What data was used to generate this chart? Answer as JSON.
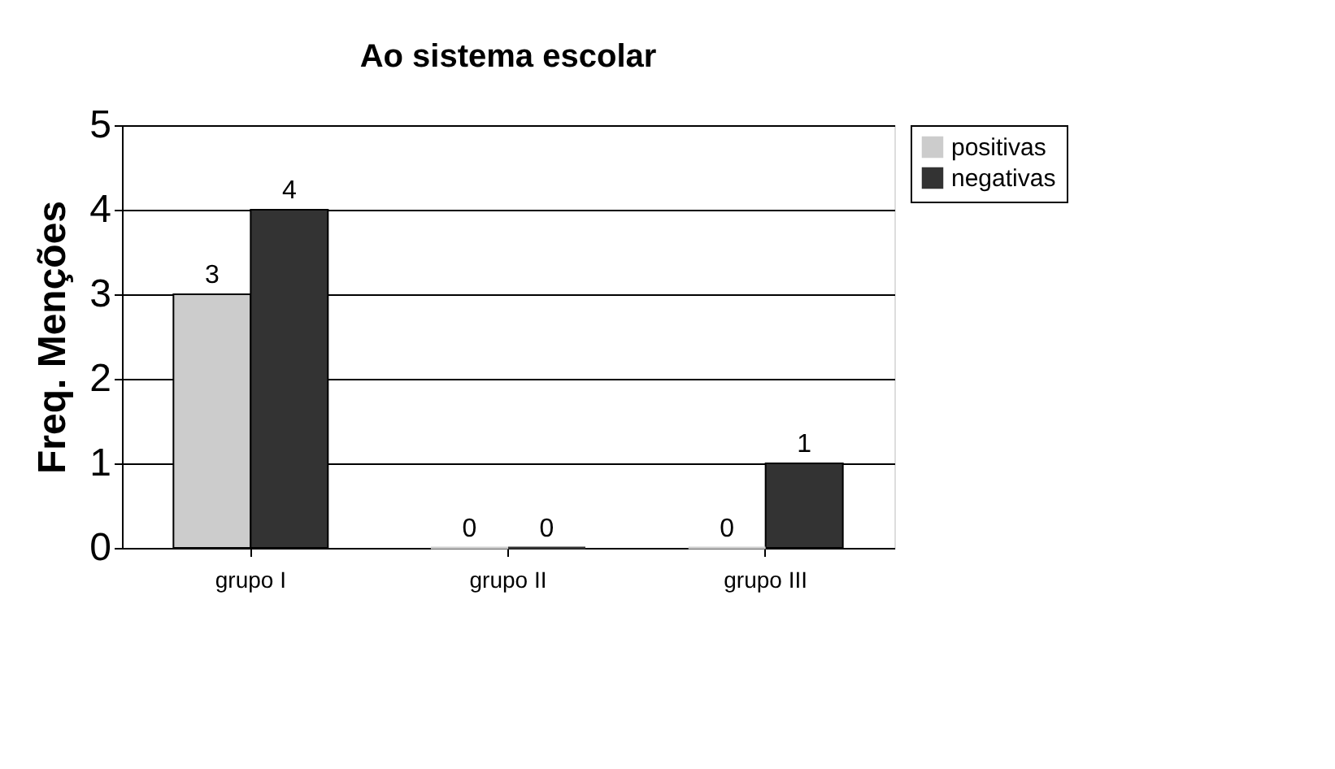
{
  "chart_data": {
    "type": "bar",
    "title": "Ao sistema escolar",
    "ylabel": "Freq. Menções",
    "categories": [
      "grupo I",
      "grupo II",
      "grupo III"
    ],
    "series": [
      {
        "name": "positivas",
        "color": "#cccccc",
        "values": [
          3,
          0,
          0
        ]
      },
      {
        "name": "negativas",
        "color": "#333333",
        "values": [
          4,
          0,
          1
        ]
      }
    ],
    "ylim": [
      0,
      5
    ],
    "yticks": [
      0,
      1,
      2,
      3,
      4,
      5
    ],
    "grid": "y",
    "legend": "right",
    "data_labels": true
  }
}
